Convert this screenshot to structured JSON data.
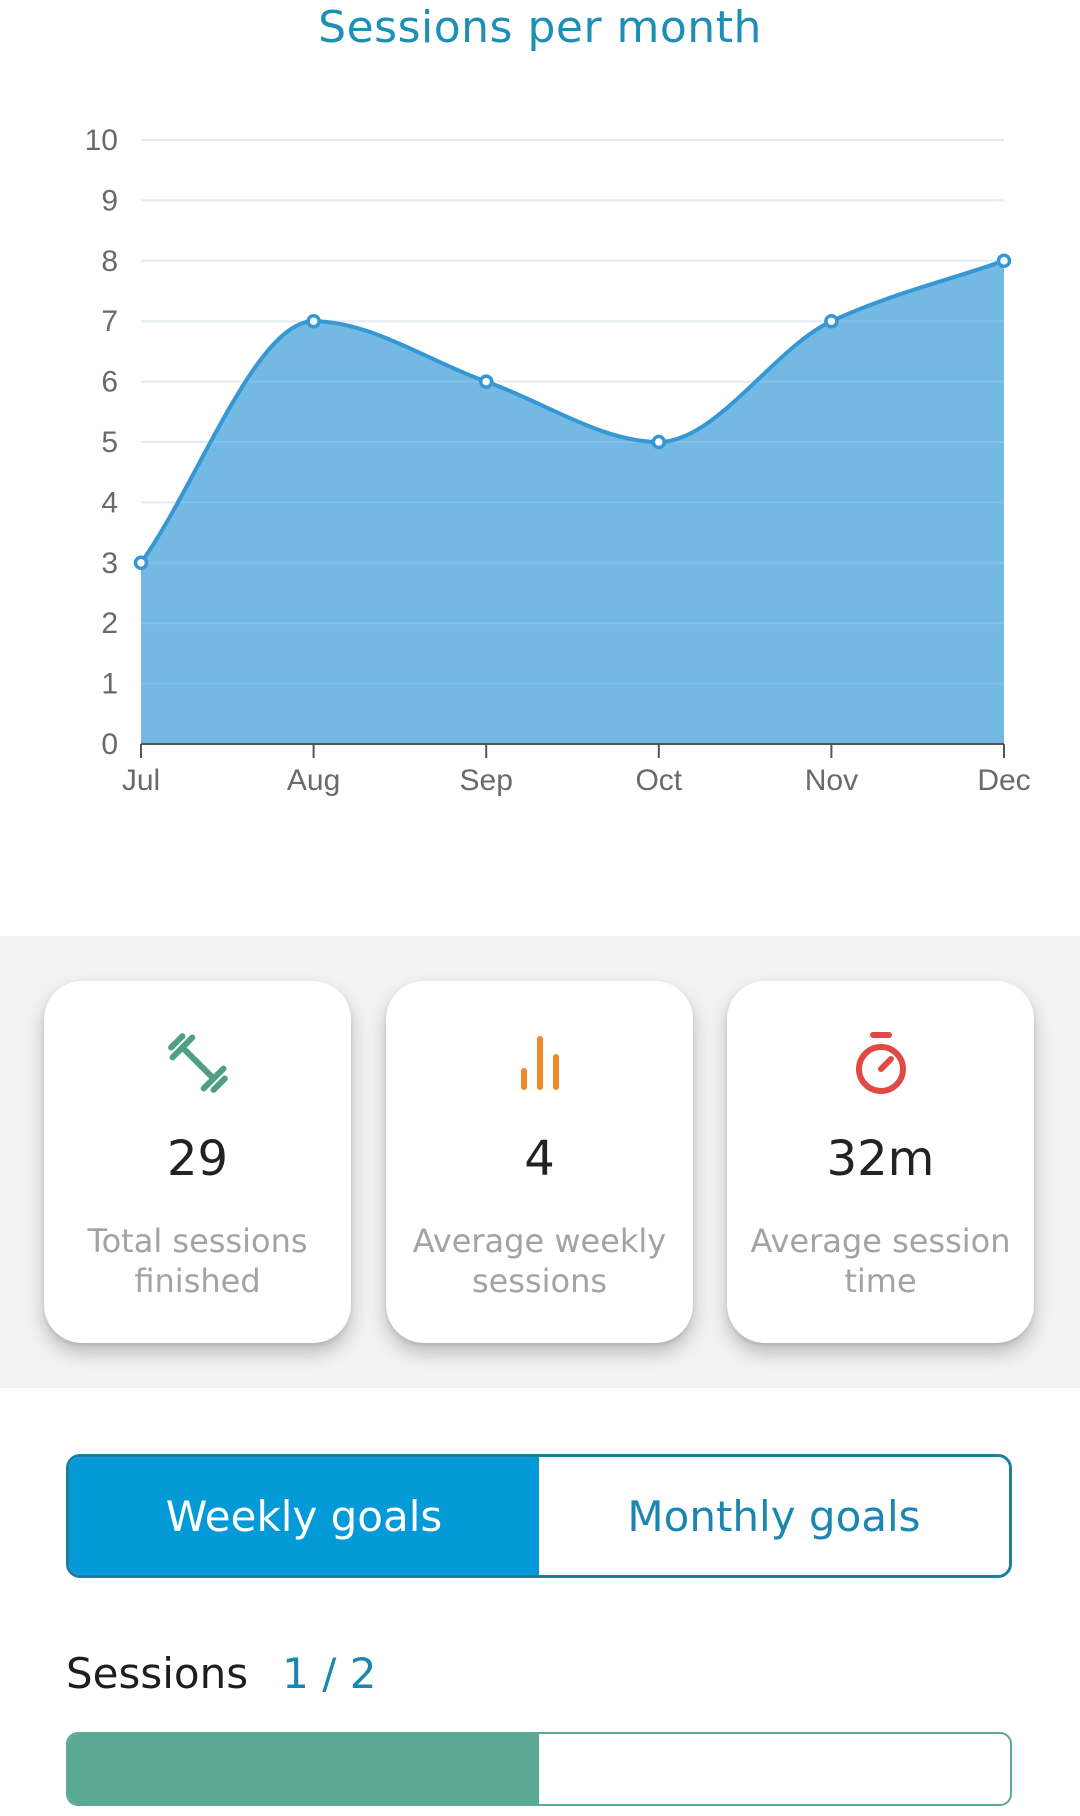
{
  "chart_data": {
    "type": "area",
    "title": "Sessions per month",
    "categories": [
      "Jul",
      "Aug",
      "Sep",
      "Oct",
      "Nov",
      "Dec"
    ],
    "values": [
      3,
      7,
      6,
      5,
      7,
      8
    ],
    "ylim": [
      0,
      10
    ],
    "yticks": [
      0,
      1,
      2,
      3,
      4,
      5,
      6,
      7,
      8,
      9,
      10
    ],
    "grid": true,
    "xlabel": "",
    "ylabel": "",
    "colors": {
      "fill": "#74b9e3",
      "line": "#3597d4",
      "grid": "#dde9f2",
      "axis": "#555555",
      "tick_label": "#6a6a6a"
    }
  },
  "stats": [
    {
      "icon": "dumbbell-icon",
      "value": "29",
      "label": "Total sessions finished",
      "color": "#4f9e86"
    },
    {
      "icon": "bar-chart-icon",
      "value": "4",
      "label": "Average weekly sessions",
      "color": "#ef8a2b"
    },
    {
      "icon": "stopwatch-icon",
      "value": "32m",
      "label": "Average session time",
      "color": "#df4b43"
    }
  ],
  "goals_toggle": {
    "weekly_label": "Weekly goals",
    "monthly_label": "Monthly goals",
    "selected": "weekly"
  },
  "sessions_goal": {
    "label": "Sessions",
    "value_text": "1 / 2",
    "progress": 0.5
  }
}
